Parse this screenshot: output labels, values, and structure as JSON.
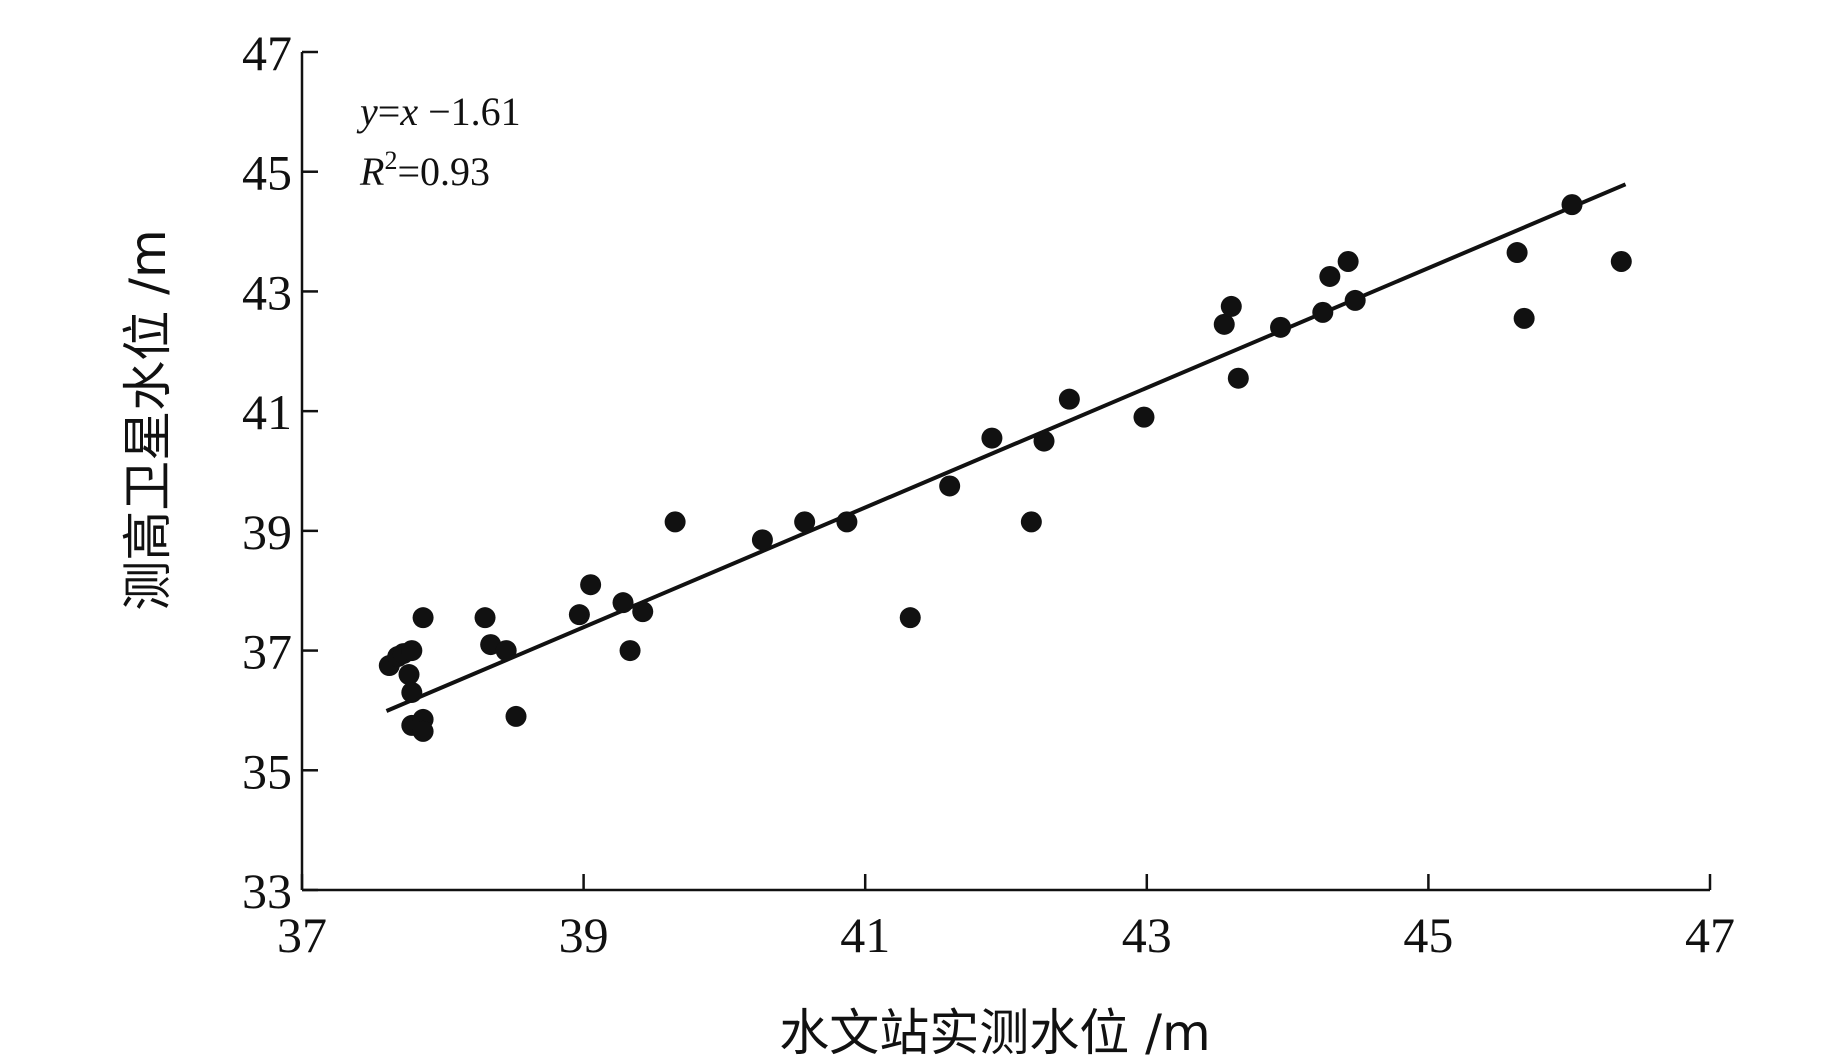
{
  "chart_data": {
    "type": "scatter",
    "title": "",
    "xlabel": "水文站实测水位 /m",
    "ylabel": "测高卫星水位 /m",
    "xlim": [
      37,
      47
    ],
    "ylim": [
      33,
      47
    ],
    "xticks": [
      "37",
      "39",
      "41",
      "43",
      "45",
      "47"
    ],
    "yticks": [
      "33",
      "35",
      "37",
      "39",
      "41",
      "43",
      "45",
      "47"
    ],
    "grid": false,
    "annotation": {
      "eq_y": "y",
      "eq_eq": "=",
      "eq_x": "x",
      "eq_rest": " −1.61",
      "r_letter": "R",
      "r_sup": "2",
      "r_rest": "=0.93"
    },
    "fit_line": {
      "slope": 1,
      "intercept": -1.61,
      "x_range": [
        37.6,
        46.4
      ]
    },
    "points": [
      [
        37.62,
        36.75
      ],
      [
        37.68,
        36.9
      ],
      [
        37.72,
        36.95
      ],
      [
        37.78,
        37.0
      ],
      [
        37.76,
        36.6
      ],
      [
        37.78,
        36.3
      ],
      [
        37.78,
        35.75
      ],
      [
        37.86,
        35.85
      ],
      [
        37.86,
        35.65
      ],
      [
        37.86,
        37.55
      ],
      [
        38.3,
        37.55
      ],
      [
        38.34,
        37.1
      ],
      [
        38.45,
        37.0
      ],
      [
        38.52,
        35.9
      ],
      [
        38.97,
        37.6
      ],
      [
        39.05,
        38.1
      ],
      [
        39.28,
        37.8
      ],
      [
        39.33,
        37.0
      ],
      [
        39.42,
        37.65
      ],
      [
        39.65,
        39.15
      ],
      [
        40.27,
        38.85
      ],
      [
        40.57,
        39.15
      ],
      [
        40.87,
        39.15
      ],
      [
        41.32,
        37.55
      ],
      [
        41.6,
        39.75
      ],
      [
        41.9,
        40.55
      ],
      [
        42.18,
        39.15
      ],
      [
        42.27,
        40.5
      ],
      [
        42.45,
        41.2
      ],
      [
        42.98,
        40.9
      ],
      [
        43.55,
        42.45
      ],
      [
        43.6,
        42.75
      ],
      [
        43.65,
        41.55
      ],
      [
        43.95,
        42.4
      ],
      [
        44.25,
        42.65
      ],
      [
        44.3,
        43.25
      ],
      [
        44.43,
        43.5
      ],
      [
        44.48,
        42.85
      ],
      [
        45.63,
        43.65
      ],
      [
        45.68,
        42.55
      ],
      [
        46.02,
        44.45
      ],
      [
        46.37,
        43.5
      ]
    ],
    "colors": {
      "axis": "#111111",
      "point": "#111111",
      "line": "#111111"
    }
  }
}
